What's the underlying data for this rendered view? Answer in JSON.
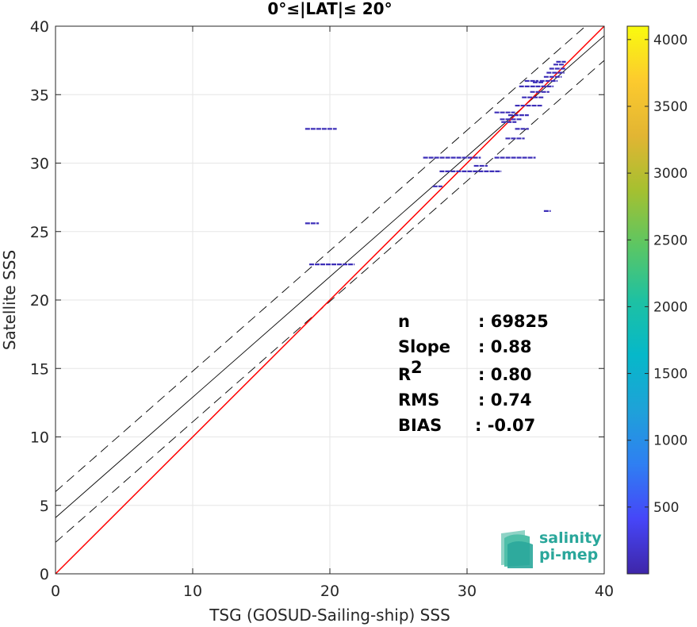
{
  "chart_data": {
    "type": "heatmap",
    "title": "0°≤|LAT|≤ 20°",
    "xlabel": "TSG (GOSUD-Sailing-ship) SSS",
    "ylabel": "Satellite SSS",
    "xlim": [
      0,
      40
    ],
    "ylim": [
      0,
      40
    ],
    "xticks": [
      "0",
      "10",
      "20",
      "30",
      "40"
    ],
    "yticks": [
      "0",
      "5",
      "10",
      "15",
      "20",
      "25",
      "30",
      "35",
      "40"
    ],
    "grid": true,
    "colorbar": {
      "range": [
        0,
        4100
      ],
      "ticks": [
        "500",
        "1000",
        "1500",
        "2000",
        "2500",
        "3000",
        "3500",
        "4000"
      ],
      "colormap": "parula"
    },
    "identity_line": {
      "slope": 1,
      "intercept": 0,
      "color": "#ff0000"
    },
    "fit_line": {
      "slope": 0.88,
      "intercept": 4.1,
      "color": "#000000"
    },
    "fit_bounds": [
      {
        "slope": 0.88,
        "intercept": 6.0,
        "style": "dashed"
      },
      {
        "slope": 0.88,
        "intercept": 2.3,
        "style": "dashed"
      }
    ],
    "segments": [
      {
        "x": [
          18.2,
          20.5
        ],
        "y": 32.5
      },
      {
        "x": [
          18.2,
          19.2
        ],
        "y": 25.6
      },
      {
        "x": [
          18.5,
          21.8
        ],
        "y": 22.6
      },
      {
        "x": [
          26.8,
          31.0
        ],
        "y": 30.4
      },
      {
        "x": [
          28.0,
          32.5
        ],
        "y": 29.4
      },
      {
        "x": [
          27.5,
          28.2
        ],
        "y": 28.3
      },
      {
        "x": [
          32.0,
          35.0
        ],
        "y": 30.4
      },
      {
        "x": [
          30.5,
          31.5
        ],
        "y": 29.8
      },
      {
        "x": [
          35.6,
          36.1
        ],
        "y": 26.5
      },
      {
        "x": [
          32.0,
          33.5
        ],
        "y": 33.7
      },
      {
        "x": [
          32.4,
          34.0
        ],
        "y": 33.2
      },
      {
        "x": [
          32.5,
          33.6
        ],
        "y": 33.0
      },
      {
        "x": [
          33.0,
          34.5
        ],
        "y": 33.5
      },
      {
        "x": [
          32.8,
          34.2
        ],
        "y": 31.8
      },
      {
        "x": [
          33.5,
          35.5
        ],
        "y": 34.2
      },
      {
        "x": [
          34.0,
          35.6
        ],
        "y": 34.8
      },
      {
        "x": [
          34.6,
          36.0
        ],
        "y": 35.2
      },
      {
        "x": [
          35.0,
          36.3
        ],
        "y": 35.6
      },
      {
        "x": [
          35.3,
          36.6
        ],
        "y": 36.0
      },
      {
        "x": [
          35.6,
          36.9
        ],
        "y": 36.3
      },
      {
        "x": [
          35.8,
          37.1
        ],
        "y": 36.6
      },
      {
        "x": [
          36.0,
          37.2
        ],
        "y": 36.9
      },
      {
        "x": [
          36.3,
          37.1
        ],
        "y": 37.2
      },
      {
        "x": [
          36.5,
          37.2
        ],
        "y": 37.4
      },
      {
        "x": [
          33.8,
          35.0
        ],
        "y": 35.6
      },
      {
        "x": [
          34.2,
          35.2
        ],
        "y": 36.0
      },
      {
        "x": [
          34.8,
          35.6
        ],
        "y": 35.9
      },
      {
        "x": [
          33.5,
          34.5
        ],
        "y": 32.5
      }
    ],
    "stats": [
      {
        "label": "n",
        "value": ": 69825"
      },
      {
        "label": "Slope",
        "value": ": 0.88"
      },
      {
        "label": "R",
        "sup": "2",
        "value": ": 0.80"
      },
      {
        "label": "RMS",
        "value": ": 0.74"
      },
      {
        "label": "BIAS",
        "value": ": -0.07"
      }
    ]
  },
  "logo": {
    "line1": "salinity",
    "line2": "pi-mep",
    "icon": "wave-layers-icon"
  }
}
